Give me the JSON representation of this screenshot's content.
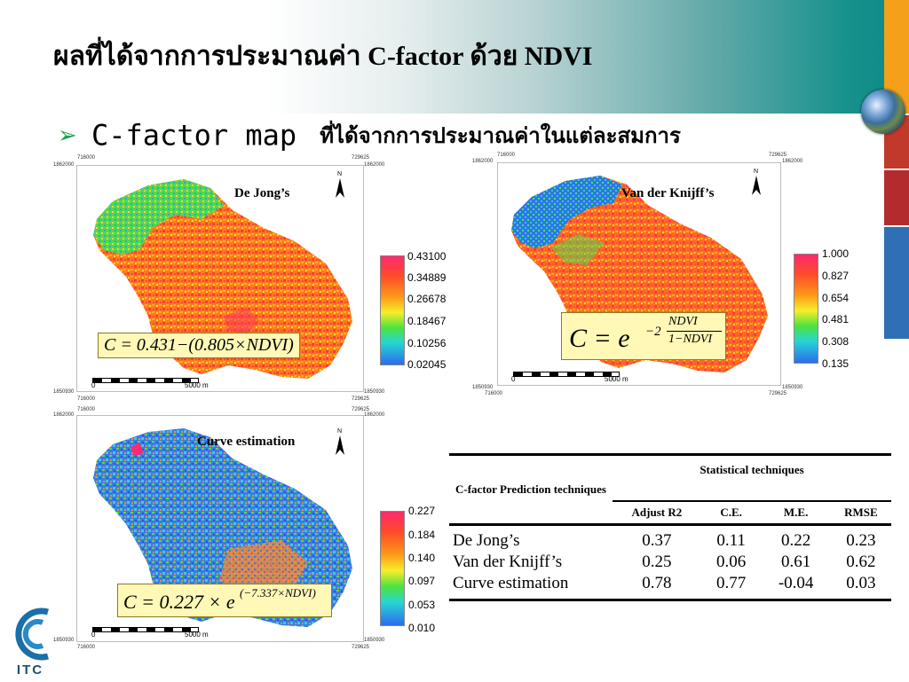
{
  "slide": {
    "title": "ผลที่ได้จากการประมาณค่า C-factor ด้วย NDVI",
    "bullet": {
      "main": "C-factor map",
      "sub": "ที่ได้จากการประมาณค่าในแต่ละสมการ"
    },
    "logo_text": "ITC"
  },
  "colors": {
    "accent_orange": "#f4a01a",
    "accent_red": "#c0392b",
    "accent_blue": "#2e6fb5",
    "banner_teal": "#16908c",
    "formula_bg": "#fff8b6"
  },
  "maps": [
    {
      "name": "De Jong’s",
      "formula": "C = 0.431−(0.805×NDVI)",
      "legend": [
        "0.43100",
        "0.34889",
        "0.26678",
        "0.18467",
        "0.10256",
        "0.02045"
      ],
      "scale": {
        "start": "0",
        "end": "5000 m"
      },
      "north": "N",
      "coords": {
        "tl_x": "716000",
        "tl_y": "1862000",
        "tr_x": "729625",
        "tr_y": "1862000",
        "bl_x": "716000",
        "bl_y": "1850930",
        "br_x": "729625",
        "br_y": "1850930"
      }
    },
    {
      "name": "Van der Knijff’s",
      "formula_base": "C = e",
      "formula_exp_coef": "−2",
      "formula_exp_num": "NDVI",
      "formula_exp_den": "1−NDVI",
      "legend": [
        "1.000",
        "0.827",
        "0.654",
        "0.481",
        "0.308",
        "0.135"
      ],
      "scale": {
        "start": "0",
        "end": "5000 m"
      },
      "north": "N",
      "coords": {
        "tl_x": "716000",
        "tl_y": "1862000",
        "tr_x": "729625",
        "tr_y": "1862000",
        "bl_x": "716000",
        "bl_y": "1850930",
        "br_x": "729625",
        "br_y": "1850930"
      }
    },
    {
      "name": "Curve estimation",
      "formula_base": "C = 0.227 × e",
      "formula_exp": "(−7.337×NDVI)",
      "legend": [
        "0.227",
        "0.184",
        "0.140",
        "0.097",
        "0.053",
        "0.010"
      ],
      "scale": {
        "start": "0",
        "end": "5000 m"
      },
      "north": "N",
      "coords": {
        "tl_x": "716000",
        "tl_y": "1862000",
        "tr_x": "729625",
        "tr_y": "1862000",
        "bl_x": "716000",
        "bl_y": "1850930",
        "br_x": "729625",
        "br_y": "1850930"
      }
    }
  ],
  "stats_table": {
    "row_header": "C-factor Prediction techniques",
    "group_header": "Statistical techniques",
    "columns": [
      "Adjust R2",
      "C.E.",
      "M.E.",
      "RMSE"
    ],
    "rows": [
      {
        "method": "De Jong’s",
        "values": [
          "0.37",
          "0.11",
          "0.22",
          "0.23"
        ]
      },
      {
        "method": "Van der Knijff’s",
        "values": [
          "0.25",
          "0.06",
          "0.61",
          "0.62"
        ]
      },
      {
        "method": "Curve estimation",
        "values": [
          "0.78",
          "0.77",
          "-0.04",
          "0.03"
        ]
      }
    ]
  }
}
